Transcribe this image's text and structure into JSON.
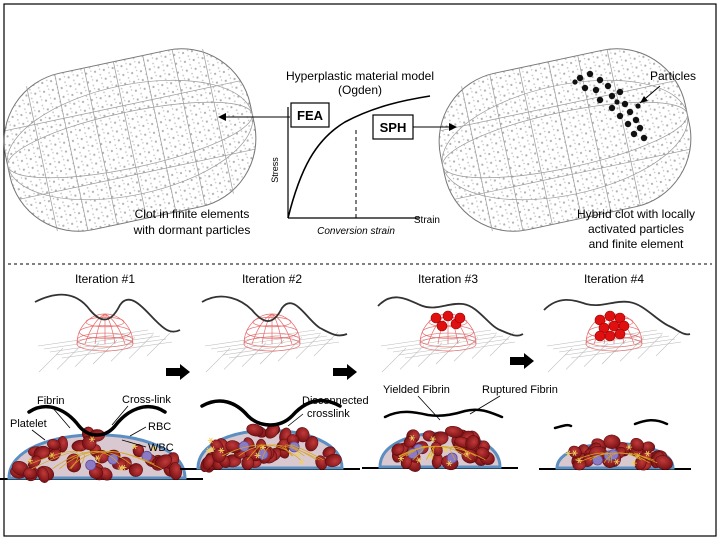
{
  "top": {
    "model_title_line1": "Hyperplastic material model",
    "model_title_line2": "(Ogden)",
    "fea_label": "FEA",
    "sph_label": "SPH",
    "stress_axis": "Stress",
    "strain_axis": "Strain",
    "conversion_strain": "Conversion strain",
    "particles_label": "Particles",
    "left_caption_line1": "Clot in finite elements",
    "left_caption_line2": "with dormant particles",
    "right_caption_line1": "Hybrid clot with locally",
    "right_caption_line2": "activated particles",
    "right_caption_line3": "and finite element"
  },
  "iterations": [
    {
      "label": "Iteration #1"
    },
    {
      "label": "Iteration #2"
    },
    {
      "label": "Iteration #3"
    },
    {
      "label": "Iteration #4"
    }
  ],
  "clot_labels": {
    "fibrin": "Fibrin",
    "cross_link": "Cross-link",
    "platelet": "Platelet",
    "rbc": "RBC",
    "wbc": "WBC",
    "disconnected_line1": "Disconnected",
    "disconnected_line2": "crosslink",
    "yielded_fibrin": "Yielded Fibrin",
    "ruptured_fibrin": "Ruptured Fibrin"
  },
  "colors": {
    "rbc": "#8e1418",
    "dome_outline": "#5b8fc2",
    "mesh_red": "#e86b6b",
    "particle_red": "#e01010"
  }
}
